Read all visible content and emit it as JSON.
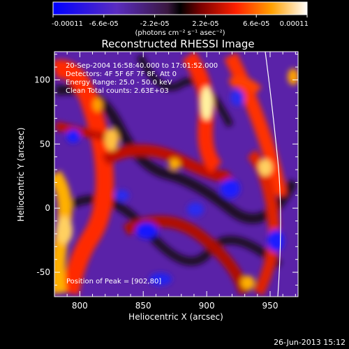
{
  "colorbar": {
    "ticks": [
      "-0.00011",
      "-6.6e-05",
      "-2.2e-05",
      "2.2e-05",
      "6.6e-05",
      "0.00011"
    ],
    "tick_values": [
      -0.00011,
      -6.6e-05,
      -2.2e-05,
      2.2e-05,
      6.6e-05,
      0.00011
    ],
    "range": [
      -0.00011,
      0.00011
    ],
    "unit_label": "(photons cm⁻² s⁻¹ asec⁻²)"
  },
  "chart_data": {
    "type": "heatmap",
    "title": "Reconstructed RHESSI Image",
    "xlabel": "Heliocentric X (arcsec)",
    "ylabel": "Heliocentric Y (arcsec)",
    "xlim": [
      780,
      972
    ],
    "ylim": [
      -69,
      122
    ],
    "xticks": [
      800,
      850,
      900,
      950
    ],
    "yticks": [
      -50,
      0,
      50,
      100
    ],
    "annotations": [
      "20-Sep-2004 16:58:40.000 to 17:01:52.000",
      "Detectors: 4F 5F 6F 7F 8F, Att 0",
      "Energy Range: 25.0 - 50.0 keV",
      "Clean     Total counts: 2.63E+03"
    ],
    "peak_label": "Position of Peak = [902,80]",
    "peak": [
      902,
      80
    ]
  },
  "timestamp": "26-Jun-2013 15:12"
}
